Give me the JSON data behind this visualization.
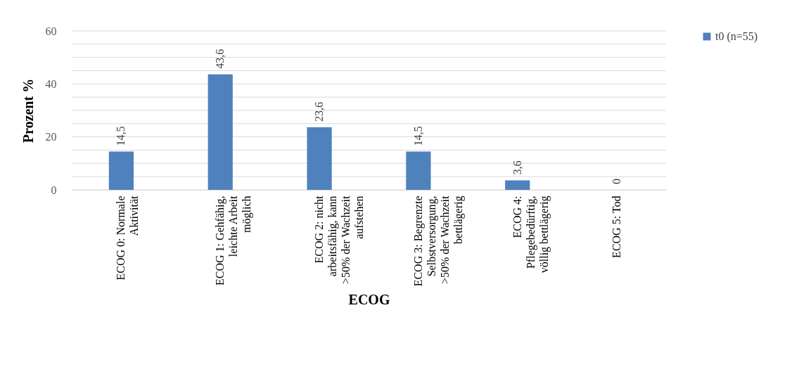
{
  "chart_data": {
    "type": "bar",
    "xlabel": "ECOG",
    "ylabel": "Prozent %",
    "categories": [
      "ECOG 0: Normale Aktivität",
      "ECOG 1: Gehfähig, leichte Arbeit möglich",
      "ECOG 2: nicht arbeitsfähig, kann >50% der Wachzeit aufstehen",
      "ECOG 3: Begrenzte Selbstversorgung, >50% der Wachzeit bettlägerig",
      "ECOG 4: Pflegebedürftig, völlig bettlägerig",
      "ECOG 5: Tod"
    ],
    "series": [
      {
        "name": "t0 (n=55)",
        "color": "#4f81bd",
        "values": [
          14.5,
          43.6,
          23.6,
          14.5,
          3.6,
          0
        ],
        "value_labels": [
          "14,5",
          "43,6",
          "23,6",
          "14,5",
          "3,6",
          "0"
        ]
      }
    ],
    "ylim": [
      0,
      60
    ],
    "yticks": [
      0,
      {
        "value": 5,
        "label": null
      },
      {
        "value": 10,
        "label": null
      },
      {
        "value": 15,
        "label": null
      },
      20,
      {
        "value": 25,
        "label": null
      },
      {
        "value": 30,
        "label": null
      },
      {
        "value": 35,
        "label": null
      },
      40,
      {
        "value": 45,
        "label": null
      },
      {
        "value": 50,
        "label": null
      },
      {
        "value": 55,
        "label": null
      },
      60
    ],
    "grid": "y",
    "legend": "right"
  }
}
